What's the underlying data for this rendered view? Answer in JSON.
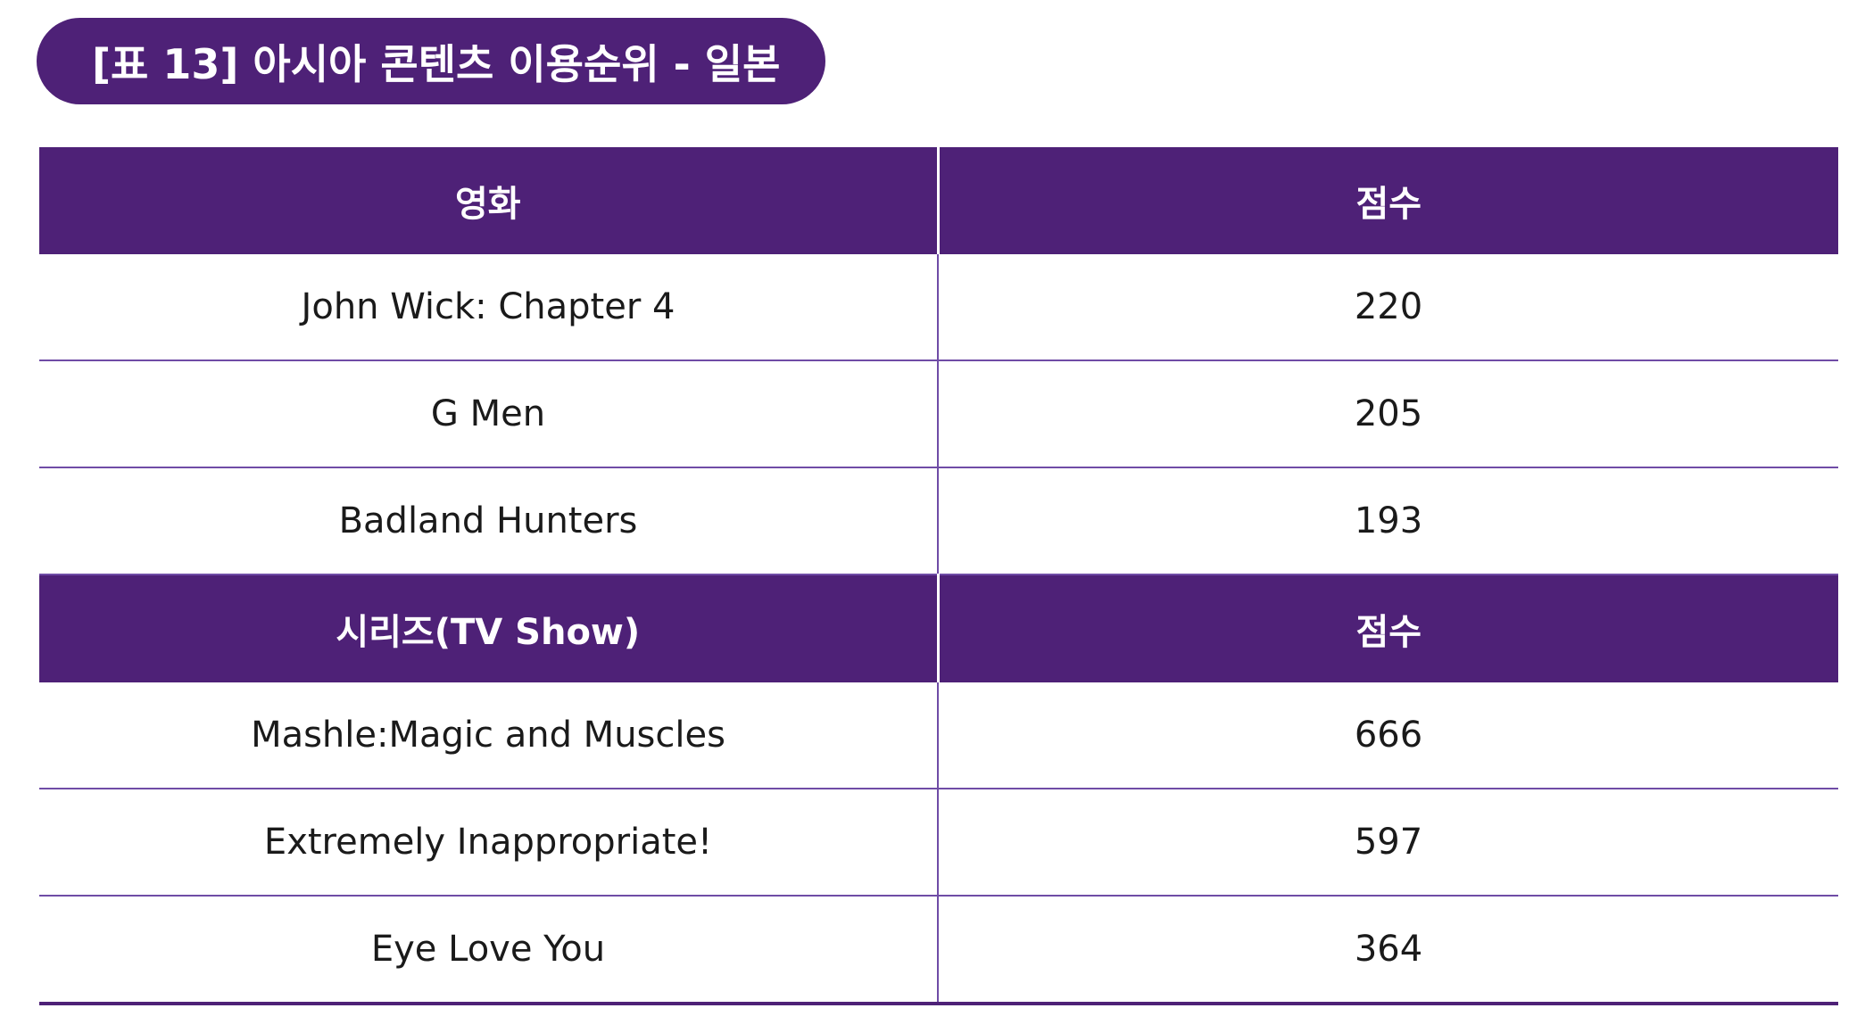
{
  "title": "[표 13] 아시아 콘텐츠 이용순위 - 일본",
  "colors": {
    "header_bg": "#4e2177",
    "header_text": "#ffffff",
    "row_divider": "#6f4ca6",
    "body_text": "#1a1a1a"
  },
  "sections": [
    {
      "header": {
        "name": "영화",
        "score": "점수"
      },
      "rows": [
        {
          "name": "John Wick: Chapter 4",
          "score": "220"
        },
        {
          "name": "G Men",
          "score": "205"
        },
        {
          "name": "Badland Hunters",
          "score": "193"
        }
      ]
    },
    {
      "header": {
        "name": "시리즈(TV Show)",
        "score": "점수"
      },
      "rows": [
        {
          "name": "Mashle:Magic and Muscles",
          "score": "666"
        },
        {
          "name": "Extremely Inappropriate!",
          "score": "597"
        },
        {
          "name": "Eye Love You",
          "score": "364"
        }
      ]
    }
  ]
}
